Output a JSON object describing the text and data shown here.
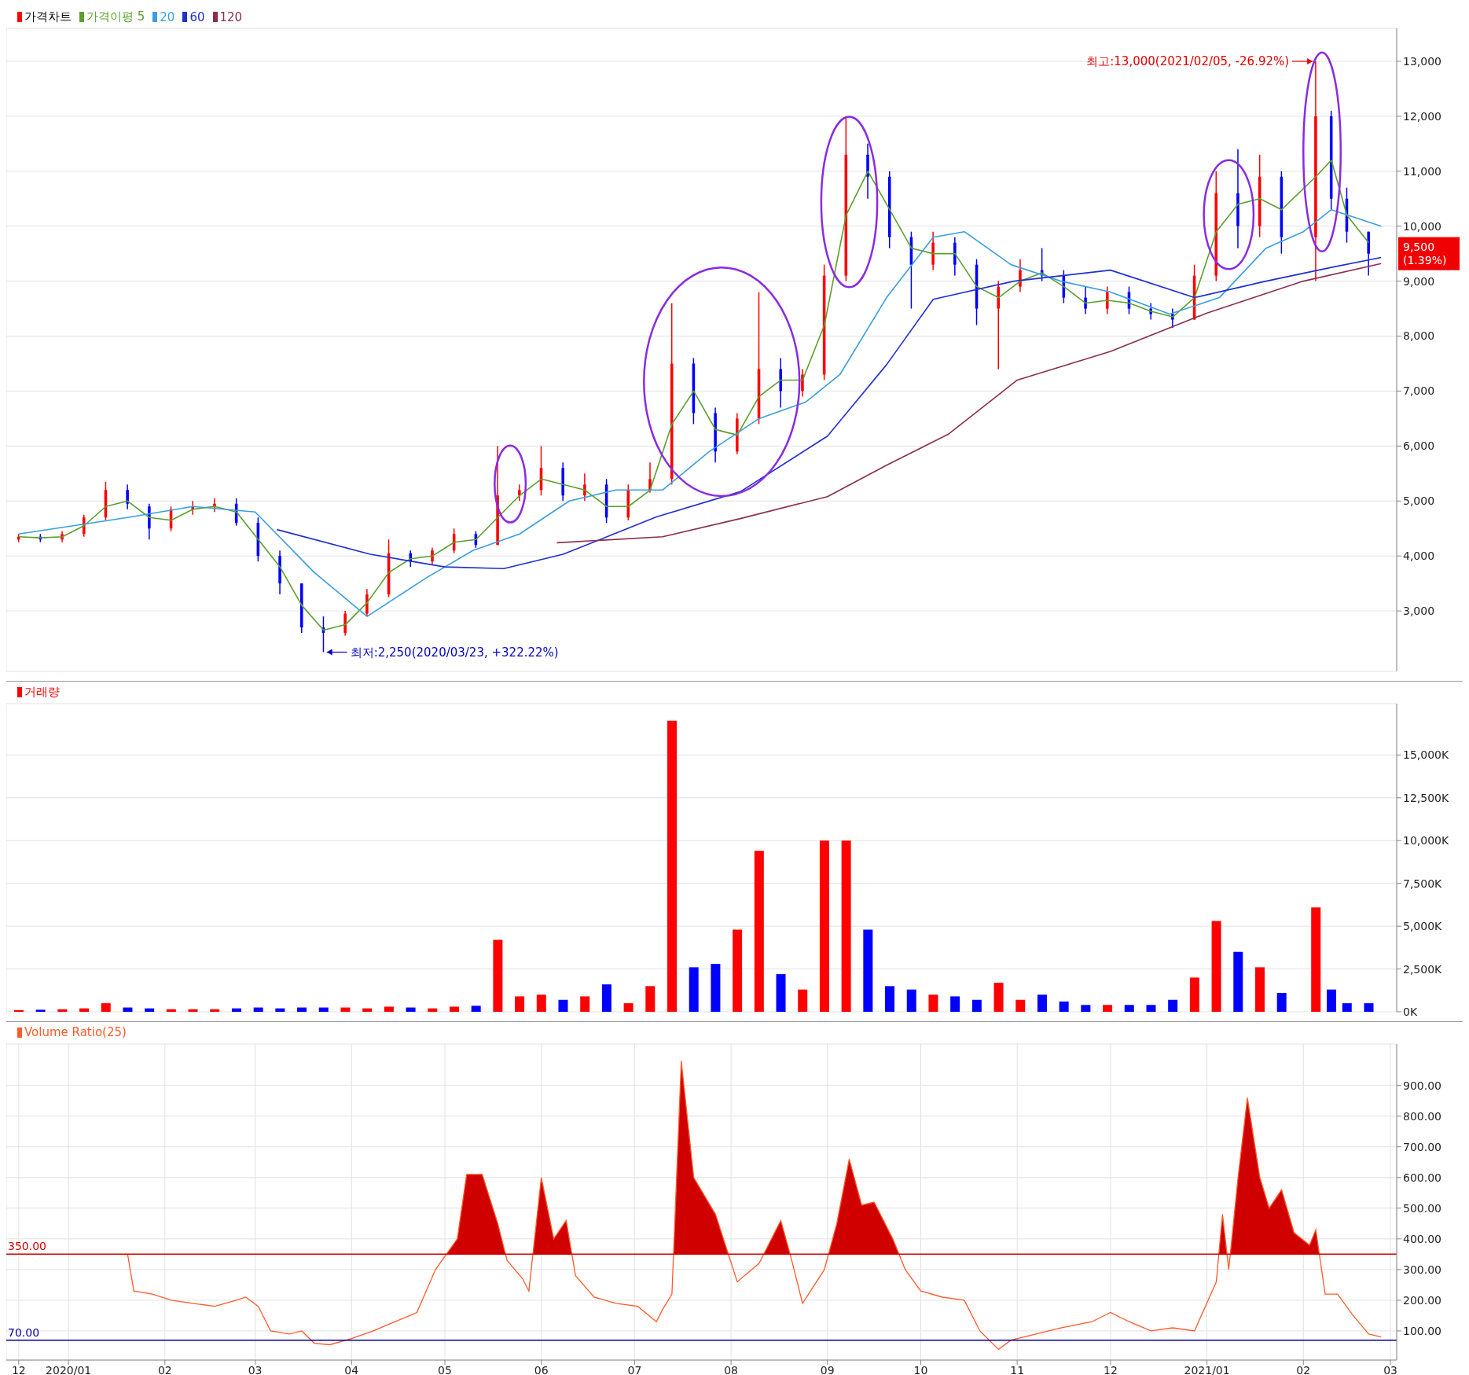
{
  "chart_data": [
    {
      "type": "candlestick",
      "x": [
        "2019-12-16",
        "2019-12-23",
        "2019-12-30",
        "2020-01-06",
        "2020-01-13",
        "2020-01-20",
        "2020-01-27",
        "2020-02-03",
        "2020-02-10",
        "2020-02-17",
        "2020-02-24",
        "2020-03-02",
        "2020-03-09",
        "2020-03-16",
        "2020-03-23",
        "2020-03-30",
        "2020-04-06",
        "2020-04-13",
        "2020-04-20",
        "2020-04-27",
        "2020-05-04",
        "2020-05-11",
        "2020-05-18",
        "2020-05-25",
        "2020-06-01",
        "2020-06-08",
        "2020-06-15",
        "2020-06-22",
        "2020-06-29",
        "2020-07-06",
        "2020-07-13",
        "2020-07-20",
        "2020-07-27",
        "2020-08-03",
        "2020-08-10",
        "2020-08-17",
        "2020-08-24",
        "2020-08-31",
        "2020-09-07",
        "2020-09-14",
        "2020-09-21",
        "2020-09-28",
        "2020-10-05",
        "2020-10-12",
        "2020-10-19",
        "2020-10-26",
        "2020-11-02",
        "2020-11-09",
        "2020-11-16",
        "2020-11-23",
        "2020-11-30",
        "2020-12-07",
        "2020-12-14",
        "2020-12-21",
        "2020-12-28",
        "2021-01-04",
        "2021-01-11",
        "2021-01-18",
        "2021-01-25",
        "2021-02-05",
        "2021-02-10",
        "2021-02-15",
        "2021-02-22"
      ],
      "series": [
        {
          "name": "가격차트",
          "ohlc": [
            [
              4300,
              4400,
              4250,
              4350
            ],
            [
              4350,
              4400,
              4250,
              4300
            ],
            [
              4300,
              4450,
              4250,
              4400
            ],
            [
              4400,
              4750,
              4350,
              4700
            ],
            [
              4700,
              5350,
              4650,
              5200
            ],
            [
              5200,
              5300,
              4850,
              4950
            ],
            [
              4900,
              4950,
              4300,
              4500
            ],
            [
              4500,
              4900,
              4450,
              4850
            ],
            [
              4850,
              5000,
              4750,
              4900
            ],
            [
              4900,
              5050,
              4800,
              4950
            ],
            [
              4950,
              5050,
              4550,
              4600
            ],
            [
              4600,
              4700,
              3900,
              4000
            ],
            [
              4000,
              4100,
              3300,
              3500
            ],
            [
              3500,
              3500,
              2600,
              2700
            ],
            [
              2700,
              2900,
              2250,
              2600
            ],
            [
              2600,
              3000,
              2550,
              2950
            ],
            [
              2950,
              3400,
              2900,
              3300
            ],
            [
              3300,
              4300,
              3250,
              4050
            ],
            [
              4050,
              4100,
              3800,
              3900
            ],
            [
              3900,
              4150,
              3850,
              4100
            ],
            [
              4100,
              4500,
              4050,
              4400
            ],
            [
              4400,
              4450,
              4150,
              4200
            ],
            [
              4200,
              6000,
              4200,
              5100
            ],
            [
              5100,
              5300,
              5000,
              5200
            ],
            [
              5200,
              6000,
              5100,
              5600
            ],
            [
              5600,
              5700,
              5000,
              5100
            ],
            [
              5100,
              5500,
              5000,
              5300
            ],
            [
              5300,
              5400,
              4600,
              4700
            ],
            [
              4700,
              5300,
              4650,
              5200
            ],
            [
              5200,
              5700,
              5150,
              5400
            ],
            [
              5400,
              8600,
              5300,
              7500
            ],
            [
              7500,
              7600,
              6400,
              6600
            ],
            [
              6600,
              6700,
              5700,
              5900
            ],
            [
              5900,
              6600,
              5850,
              6500
            ],
            [
              6500,
              8800,
              6400,
              7400
            ],
            [
              7400,
              7600,
              6700,
              7000
            ],
            [
              7000,
              7400,
              6900,
              7300
            ],
            [
              7300,
              9300,
              7200,
              9100
            ],
            [
              9100,
              12000,
              9000,
              11300
            ],
            [
              11300,
              11500,
              10500,
              10900
            ],
            [
              10900,
              11000,
              9600,
              9800
            ],
            [
              9800,
              9900,
              8500,
              9300
            ],
            [
              9300,
              9900,
              9200,
              9700
            ],
            [
              9700,
              9800,
              9100,
              9300
            ],
            [
              9300,
              9400,
              8200,
              8500
            ],
            [
              8500,
              9000,
              7400,
              8900
            ],
            [
              8900,
              9400,
              8800,
              9200
            ],
            [
              9200,
              9600,
              9000,
              9100
            ],
            [
              9100,
              9200,
              8600,
              8700
            ],
            [
              8700,
              8900,
              8400,
              8500
            ],
            [
              8500,
              8900,
              8400,
              8800
            ],
            [
              8800,
              8900,
              8400,
              8500
            ],
            [
              8500,
              8600,
              8300,
              8400
            ],
            [
              8400,
              8500,
              8150,
              8300
            ],
            [
              8300,
              9300,
              8300,
              9100
            ],
            [
              9100,
              11000,
              9000,
              10600
            ],
            [
              10600,
              11400,
              9600,
              10000
            ],
            [
              10000,
              11300,
              9800,
              10900
            ],
            [
              10900,
              11000,
              9500,
              9800
            ],
            [
              9800,
              13000,
              9000,
              12000
            ],
            [
              12000,
              12100,
              10300,
              10500
            ],
            [
              10500,
              10700,
              9700,
              9900
            ],
            [
              9900,
              9900,
              9100,
              9500
            ]
          ],
          "colors": [
            "#ff0000",
            "#0000ff",
            "#ff0000",
            "#ff0000",
            "#ff0000",
            "#0000ff",
            "#0000ff",
            "#ff0000",
            "#ff0000",
            "#ff0000",
            "#0000ff",
            "#0000ff",
            "#0000ff",
            "#0000ff",
            "#0000ff",
            "#ff0000",
            "#ff0000",
            "#ff0000",
            "#0000ff",
            "#ff0000",
            "#ff0000",
            "#0000ff",
            "#ff0000",
            "#ff0000",
            "#ff0000",
            "#0000ff",
            "#ff0000",
            "#0000ff",
            "#ff0000",
            "#ff0000",
            "#ff0000",
            "#0000ff",
            "#0000ff",
            "#ff0000",
            "#ff0000",
            "#0000ff",
            "#ff0000",
            "#ff0000",
            "#ff0000",
            "#0000ff",
            "#0000ff",
            "#0000ff",
            "#ff0000",
            "#0000ff",
            "#0000ff",
            "#ff0000",
            "#ff0000",
            "#0000ff",
            "#0000ff",
            "#0000ff",
            "#ff0000",
            "#0000ff",
            "#0000ff",
            "#0000ff",
            "#ff0000",
            "#ff0000",
            "#0000ff",
            "#ff0000",
            "#0000ff",
            "#ff0000",
            "#0000ff",
            "#0000ff",
            "#0000ff"
          ]
        },
        {
          "name": "가격이평 5",
          "type": "line",
          "color": "#5aa02c",
          "values": [
            4350,
            4330,
            4350,
            4550,
            4900,
            5000,
            4700,
            4650,
            4850,
            4900,
            4800,
            4300,
            3800,
            3100,
            2650,
            2750,
            3150,
            3700,
            3950,
            4000,
            4250,
            4300,
            4700,
            5100,
            5400,
            5300,
            5200,
            4900,
            4900,
            5200,
            6400,
            7000,
            6300,
            6200,
            6900,
            7200,
            7200,
            8200,
            10200,
            11000,
            10300,
            9600,
            9500,
            9500,
            8900,
            8700,
            9000,
            9150,
            8900,
            8600,
            8650,
            8600,
            8450,
            8350,
            8700,
            9900,
            10400,
            10500,
            10300,
            10900,
            11200,
            10200,
            9700
          ]
        },
        {
          "name": "20",
          "type": "line",
          "color": "#3a9ee0",
          "x": [
            "2019-12-16",
            "2020-01-20",
            "2020-02-10",
            "2020-03-01",
            "2020-03-20",
            "2020-04-06",
            "2020-04-25",
            "2020-05-10",
            "2020-05-25",
            "2020-06-10",
            "2020-06-25",
            "2020-07-10",
            "2020-07-25",
            "2020-08-10",
            "2020-08-25",
            "2020-09-05",
            "2020-09-20",
            "2020-10-05",
            "2020-10-15",
            "2020-10-30",
            "2020-11-15",
            "2020-12-01",
            "2020-12-20",
            "2021-01-05",
            "2021-01-20",
            "2021-02-01",
            "2021-02-10",
            "2021-02-26"
          ],
          "values": [
            4400,
            4700,
            4900,
            4800,
            3700,
            2900,
            3600,
            4100,
            4400,
            5000,
            5200,
            5200,
            5900,
            6500,
            6800,
            7300,
            8700,
            9800,
            9900,
            9300,
            9000,
            8800,
            8400,
            8700,
            9600,
            9900,
            10300,
            10000
          ]
        },
        {
          "name": "60",
          "type": "line",
          "color": "#1f2fd0",
          "x": [
            "2020-03-08",
            "2020-04-07",
            "2020-05-01",
            "2020-05-20",
            "2020-06-08",
            "2020-07-08",
            "2020-08-04",
            "2020-09-01",
            "2020-09-20",
            "2020-10-05",
            "2020-10-31",
            "2020-12-01",
            "2020-12-28",
            "2021-01-20",
            "2021-02-10",
            "2021-02-26"
          ],
          "values": [
            4480,
            4030,
            3800,
            3770,
            4030,
            4710,
            5170,
            6180,
            7480,
            8670,
            9000,
            9200,
            8700,
            9000,
            9250,
            9430
          ]
        },
        {
          "name": "120",
          "type": "line",
          "color": "#8b2e4e",
          "x": [
            "2020-06-06",
            "2020-07-10",
            "2020-08-04",
            "2020-09-01",
            "2020-09-20",
            "2020-10-10",
            "2020-11-01",
            "2020-12-01",
            "2021-01-01",
            "2021-02-01",
            "2021-02-26"
          ],
          "values": [
            4240,
            4350,
            4680,
            5080,
            5650,
            6220,
            7200,
            7720,
            8420,
            9000,
            9320
          ]
        }
      ],
      "xlim": [
        "2019-12-12",
        "2021-03-03"
      ],
      "xticks": [
        {
          "value": "2019-12-16",
          "label": null
        },
        {
          "value": "2020-01-01",
          "label": null
        },
        {
          "value": "2020-02-01",
          "label": null
        },
        {
          "value": "2020-03-01",
          "label": null
        },
        {
          "value": "2020-04-01",
          "label": null
        },
        {
          "value": "2020-05-01",
          "label": null
        },
        {
          "value": "2020-06-01",
          "label": null
        },
        {
          "value": "2020-07-01",
          "label": null
        },
        {
          "value": "2020-08-01",
          "label": null
        },
        {
          "value": "2020-09-01",
          "label": null
        },
        {
          "value": "2020-10-01",
          "label": null
        },
        {
          "value": "2020-11-01",
          "label": null
        },
        {
          "value": "2020-12-01",
          "label": null
        },
        {
          "value": "2021-01-01",
          "label": null
        },
        {
          "value": "2021-02-01",
          "label": null
        },
        {
          "value": "2021-03-01",
          "label": null
        }
      ],
      "ylim": [
        1900,
        13600
      ],
      "yticks": [
        {
          "value": 3000,
          "label": "3,000"
        },
        {
          "value": 4000,
          "label": "4,000"
        },
        {
          "value": 5000,
          "label": "5,000"
        },
        {
          "value": 6000,
          "label": "6,000"
        },
        {
          "value": 7000,
          "label": "7,000"
        },
        {
          "value": 8000,
          "label": "8,000"
        },
        {
          "value": 9000,
          "label": "9,000"
        },
        {
          "value": 10000,
          "label": "10,000"
        },
        {
          "value": 11000,
          "label": "11,000"
        },
        {
          "value": 12000,
          "label": "12,000"
        },
        {
          "value": 13000,
          "label": "13,000"
        }
      ],
      "annotations": [
        {
          "text": "최고:13,000(2021/02/05, -26.92%)",
          "x": "2021-02-05",
          "y": 13000
        },
        {
          "text": "최저:2,250(2020/03/23, +322.22%)",
          "x": "2020-03-23",
          "y": 2250
        },
        "9,500 (1.39%)"
      ],
      "grid": true,
      "legend": "top left",
      "tick_labels": "y"
    },
    {
      "type": "bar",
      "x": [
        "2019-12-16",
        "2019-12-23",
        "2019-12-30",
        "2020-01-06",
        "2020-01-13",
        "2020-01-20",
        "2020-01-27",
        "2020-02-03",
        "2020-02-10",
        "2020-02-17",
        "2020-02-24",
        "2020-03-02",
        "2020-03-09",
        "2020-03-16",
        "2020-03-23",
        "2020-03-30",
        "2020-04-06",
        "2020-04-13",
        "2020-04-20",
        "2020-04-27",
        "2020-05-04",
        "2020-05-11",
        "2020-05-18",
        "2020-05-25",
        "2020-06-01",
        "2020-06-08",
        "2020-06-15",
        "2020-06-22",
        "2020-06-29",
        "2020-07-06",
        "2020-07-13",
        "2020-07-20",
        "2020-07-27",
        "2020-08-03",
        "2020-08-10",
        "2020-08-17",
        "2020-08-24",
        "2020-08-31",
        "2020-09-07",
        "2020-09-14",
        "2020-09-21",
        "2020-09-28",
        "2020-10-05",
        "2020-10-12",
        "2020-10-19",
        "2020-10-26",
        "2020-11-02",
        "2020-11-09",
        "2020-11-16",
        "2020-11-23",
        "2020-11-30",
        "2020-12-07",
        "2020-12-14",
        "2020-12-21",
        "2020-12-28",
        "2021-01-04",
        "2021-01-11",
        "2021-01-18",
        "2021-01-25",
        "2021-02-05",
        "2021-02-10",
        "2021-02-15",
        "2021-02-22"
      ],
      "series": [
        {
          "name": "거래량",
          "color": "#ff0000",
          "values": [
            100,
            120,
            150,
            200,
            500,
            250,
            200,
            150,
            150,
            150,
            200,
            250,
            200,
            250,
            250,
            250,
            200,
            300,
            250,
            200,
            300,
            350,
            4200,
            900,
            1000,
            700,
            900,
            1600,
            500,
            1500,
            17000,
            2600,
            2800,
            4800,
            9400,
            2200,
            1300,
            10000,
            10000,
            4800,
            1500,
            1300,
            1000,
            900,
            700,
            1700,
            700,
            1000,
            600,
            400,
            400,
            400,
            400,
            700,
            2000,
            5300,
            3500,
            2600,
            1100,
            6100,
            1300,
            500,
            500
          ],
          "colors": [
            "#ff0000",
            "#0000ff",
            "#ff0000",
            "#ff0000",
            "#ff0000",
            "#0000ff",
            "#0000ff",
            "#ff0000",
            "#ff0000",
            "#ff0000",
            "#0000ff",
            "#0000ff",
            "#0000ff",
            "#0000ff",
            "#0000ff",
            "#ff0000",
            "#ff0000",
            "#ff0000",
            "#0000ff",
            "#ff0000",
            "#ff0000",
            "#0000ff",
            "#ff0000",
            "#ff0000",
            "#ff0000",
            "#0000ff",
            "#ff0000",
            "#0000ff",
            "#ff0000",
            "#ff0000",
            "#ff0000",
            "#0000ff",
            "#0000ff",
            "#ff0000",
            "#ff0000",
            "#0000ff",
            "#ff0000",
            "#ff0000",
            "#ff0000",
            "#0000ff",
            "#0000ff",
            "#0000ff",
            "#ff0000",
            "#0000ff",
            "#0000ff",
            "#ff0000",
            "#ff0000",
            "#0000ff",
            "#0000ff",
            "#0000ff",
            "#ff0000",
            "#0000ff",
            "#0000ff",
            "#0000ff",
            "#ff0000",
            "#ff0000",
            "#0000ff",
            "#ff0000",
            "#0000ff",
            "#ff0000",
            "#0000ff",
            "#0000ff",
            "#0000ff"
          ]
        }
      ],
      "xlim": [
        "2019-12-12",
        "2021-03-03"
      ],
      "xticks": [
        {
          "value": "2019-12-16",
          "label": null
        },
        {
          "value": "2020-01-01",
          "label": null
        },
        {
          "value": "2020-02-01",
          "label": null
        },
        {
          "value": "2020-03-01",
          "label": null
        },
        {
          "value": "2020-04-01",
          "label": null
        },
        {
          "value": "2020-05-01",
          "label": null
        },
        {
          "value": "2020-06-01",
          "label": null
        },
        {
          "value": "2020-07-01",
          "label": null
        },
        {
          "value": "2020-08-01",
          "label": null
        },
        {
          "value": "2020-09-01",
          "label": null
        },
        {
          "value": "2020-10-01",
          "label": null
        },
        {
          "value": "2020-11-01",
          "label": null
        },
        {
          "value": "2020-12-01",
          "label": null
        },
        {
          "value": "2021-01-01",
          "label": null
        },
        {
          "value": "2021-02-01",
          "label": null
        },
        {
          "value": "2021-03-01",
          "label": null
        }
      ],
      "ylim": [
        0,
        18000
      ],
      "yticks": [
        {
          "value": 0,
          "label": "0K"
        },
        {
          "value": 2500,
          "label": "2,500K"
        },
        {
          "value": 5000,
          "label": "5,000K"
        },
        {
          "value": 7500,
          "label": "7,500K"
        },
        {
          "value": 10000,
          "label": "10,000K"
        },
        {
          "value": 12500,
          "label": "12,500K"
        },
        {
          "value": 15000,
          "label": "15,000K"
        }
      ],
      "grid": true,
      "legend": "top left",
      "tick_labels": "y"
    },
    {
      "type": "area",
      "series": [
        {
          "name": "Volume Ratio(25)",
          "color": "#ff5a2a",
          "x": [
            "2020-01-20",
            "2020-01-22",
            "2020-01-28",
            "2020-02-03",
            "2020-02-10",
            "2020-02-17",
            "2020-02-24",
            "2020-02-27",
            "2020-03-02",
            "2020-03-06",
            "2020-03-12",
            "2020-03-16",
            "2020-03-20",
            "2020-03-25",
            "2020-04-01",
            "2020-04-08",
            "2020-04-15",
            "2020-04-22",
            "2020-04-28",
            "2020-05-05",
            "2020-05-08",
            "2020-05-13",
            "2020-05-18",
            "2020-05-21",
            "2020-05-26",
            "2020-05-28",
            "2020-06-01",
            "2020-06-05",
            "2020-06-09",
            "2020-06-12",
            "2020-06-18",
            "2020-06-25",
            "2020-07-02",
            "2020-07-08",
            "2020-07-10",
            "2020-07-13",
            "2020-07-16",
            "2020-07-20",
            "2020-07-27",
            "2020-08-03",
            "2020-08-10",
            "2020-08-17",
            "2020-08-20",
            "2020-08-24",
            "2020-08-31",
            "2020-09-04",
            "2020-09-08",
            "2020-09-12",
            "2020-09-16",
            "2020-09-22",
            "2020-09-26",
            "2020-10-01",
            "2020-10-08",
            "2020-10-15",
            "2020-10-20",
            "2020-10-26",
            "2020-10-30",
            "2020-11-05",
            "2020-11-15",
            "2020-11-25",
            "2020-12-01",
            "2020-12-07",
            "2020-12-14",
            "2020-12-21",
            "2020-12-28",
            "2021-01-04",
            "2021-01-06",
            "2021-01-08",
            "2021-01-11",
            "2021-01-14",
            "2021-01-18",
            "2021-01-21",
            "2021-01-25",
            "2021-01-29",
            "2021-02-03",
            "2021-02-05",
            "2021-02-08",
            "2021-02-12",
            "2021-02-17",
            "2021-02-22",
            "2021-02-26"
          ],
          "values": [
            350,
            230,
            220,
            200,
            190,
            180,
            200,
            210,
            180,
            100,
            90,
            100,
            60,
            55,
            75,
            100,
            130,
            160,
            300,
            400,
            610,
            610,
            450,
            330,
            270,
            230,
            600,
            400,
            460,
            280,
            210,
            190,
            180,
            130,
            170,
            220,
            980,
            600,
            480,
            260,
            320,
            460,
            350,
            190,
            300,
            450,
            660,
            510,
            520,
            400,
            300,
            230,
            210,
            200,
            100,
            40,
            70,
            85,
            110,
            130,
            160,
            130,
            100,
            110,
            100,
            260,
            480,
            300,
            600,
            860,
            600,
            500,
            560,
            420,
            380,
            430,
            220,
            220,
            150,
            90,
            80
          ]
        }
      ],
      "ref_lines": [
        {
          "axis": "y",
          "value": 350,
          "label": "350.00",
          "color": "#d00000"
        },
        {
          "axis": "y",
          "value": 70,
          "label": "70.00",
          "color": "#000090"
        }
      ],
      "xlim": [
        "2019-12-12",
        "2021-03-03"
      ],
      "xticks": [
        {
          "value": "2019-12-16",
          "label": "12"
        },
        {
          "value": "2020-01-01",
          "label": "2020/01"
        },
        {
          "value": "2020-02-01",
          "label": "02"
        },
        {
          "value": "2020-03-01",
          "label": "03"
        },
        {
          "value": "2020-04-01",
          "label": "04"
        },
        {
          "value": "2020-05-01",
          "label": "05"
        },
        {
          "value": "2020-06-01",
          "label": "06"
        },
        {
          "value": "2020-07-01",
          "label": "07"
        },
        {
          "value": "2020-08-01",
          "label": "08"
        },
        {
          "value": "2020-09-01",
          "label": "09"
        },
        {
          "value": "2020-10-01",
          "label": "10"
        },
        {
          "value": "2020-11-01",
          "label": "11"
        },
        {
          "value": "2020-12-01",
          "label": "12"
        },
        {
          "value": "2021-01-01",
          "label": "2021/01"
        },
        {
          "value": "2021-02-01",
          "label": "02"
        },
        {
          "value": "2021-03-01",
          "label": "03"
        }
      ],
      "ylim": [
        5,
        1035
      ],
      "yticks": [
        {
          "value": 100,
          "label": "100.00"
        },
        {
          "value": 200,
          "label": "200.00"
        },
        {
          "value": 300,
          "label": "300.00"
        },
        {
          "value": 400,
          "label": "400.00"
        },
        {
          "value": 500,
          "label": "500.00"
        },
        {
          "value": 600,
          "label": "600.00"
        },
        {
          "value": 700,
          "label": "700.00"
        },
        {
          "value": 800,
          "label": "800.00"
        },
        {
          "value": 900,
          "label": "900.00"
        }
      ],
      "grid": true,
      "legend": "top left"
    }
  ]
}
